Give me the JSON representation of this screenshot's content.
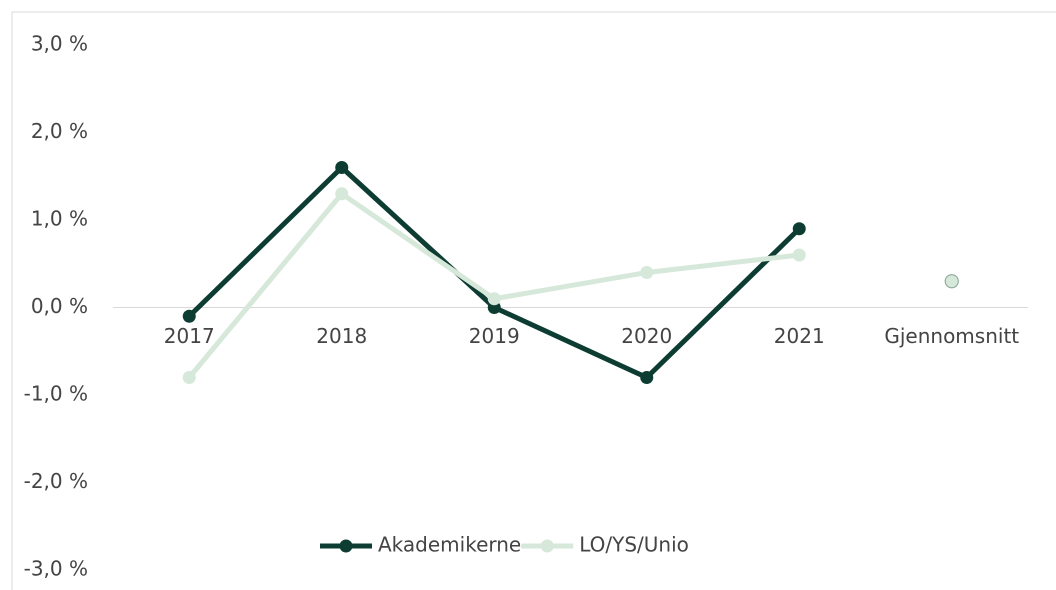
{
  "chart_data": {
    "type": "line",
    "categories": [
      "2017",
      "2018",
      "2019",
      "2020",
      "2021",
      "Gjennomsnitt"
    ],
    "series": [
      {
        "name": "Akademikerne",
        "color": "#0d3d32",
        "values": [
          -0.1,
          1.6,
          0.0,
          -0.8,
          0.9,
          0.3
        ]
      },
      {
        "name": "LO/YS/Unio",
        "color": "#d6e8d9",
        "values": [
          -0.8,
          1.3,
          0.1,
          0.4,
          0.6,
          0.3
        ]
      }
    ],
    "standalone_categories": [
      5
    ],
    "ylim": [
      -3,
      3
    ],
    "yticks": [
      {
        "value": -3,
        "label": "-3,0 %"
      },
      {
        "value": -2,
        "label": "-2,0 %"
      },
      {
        "value": -1,
        "label": "-1,0 %"
      },
      {
        "value": 0,
        "label": "0,0 %"
      },
      {
        "value": 1,
        "label": "1,0 %"
      },
      {
        "value": 2,
        "label": "2,0 %"
      },
      {
        "value": 3,
        "label": "3,0 %"
      }
    ],
    "grid": false,
    "legend": "bottom"
  }
}
